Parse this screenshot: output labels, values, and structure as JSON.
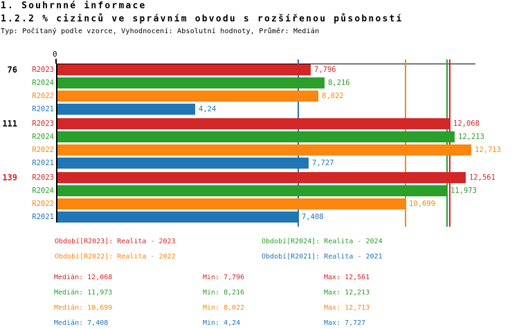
{
  "header": {
    "title": "1. Souhrnné informace",
    "subtitle": "1.2.2 % cizinců ve správním obvodu s rozšířenou působností",
    "meta": "Typ: Počítaný podle vzorce, Vyhodnocení: Absolutní hodnoty, Průměr: Medián"
  },
  "chart_data": {
    "type": "bar",
    "orientation": "horizontal",
    "title": "1.2.2 % cizinců ve správním obvodu s rozšířenou působností",
    "axis": {
      "zero_label": "0",
      "xlim": [
        0,
        12.9
      ],
      "grid": false
    },
    "categories": [
      "76",
      "111",
      "139"
    ],
    "category_colors": [
      "#000000",
      "#000000",
      "#d32727"
    ],
    "series": [
      {
        "name": "R2023",
        "color": "#d32727",
        "values": [
          7.796,
          12.068,
          12.561
        ],
        "value_labels": [
          "7,796",
          "12,068",
          "12,561"
        ],
        "median": 12.068
      },
      {
        "name": "R2024",
        "color": "#2aa02b",
        "values": [
          8.216,
          12.213,
          11.973
        ],
        "value_labels": [
          "8,216",
          "12,213",
          "11,973"
        ],
        "median": 11.973
      },
      {
        "name": "R2022",
        "color": "#fd860f",
        "values": [
          8.022,
          12.713,
          10.699
        ],
        "value_labels": [
          "8,022",
          "12,713",
          "10,699"
        ],
        "median": 10.699
      },
      {
        "name": "R2021",
        "color": "#2176b4",
        "values": [
          4.24,
          7.727,
          7.408
        ],
        "value_labels": [
          "4,24",
          "7,727",
          "7,408"
        ],
        "median": 7.408
      }
    ],
    "legend_position": "bottom"
  },
  "legend": {
    "items": [
      {
        "text": "Období[R2023]: Realita - 2023",
        "color": "#d32727"
      },
      {
        "text": "Období[R2024]: Realita - 2024",
        "color": "#2aa02b"
      },
      {
        "text": "Období[R2022]: Realita - 2022",
        "color": "#fd860f"
      },
      {
        "text": "Období[R2021]: Realita - 2021",
        "color": "#2176b4"
      }
    ]
  },
  "stats": {
    "labels": {
      "median": "Medián",
      "min": "Min",
      "max": "Max"
    },
    "rows": [
      {
        "color": "#d32727",
        "median": "12,068",
        "min": "7,796",
        "max": "12,561"
      },
      {
        "color": "#2aa02b",
        "median": "11,973",
        "min": "8,216",
        "max": "12,213"
      },
      {
        "color": "#fd860f",
        "median": "10,699",
        "min": "8,022",
        "max": "12,713"
      },
      {
        "color": "#2176b4",
        "median": "7,408",
        "min": "4,24",
        "max": "7,727"
      }
    ]
  }
}
